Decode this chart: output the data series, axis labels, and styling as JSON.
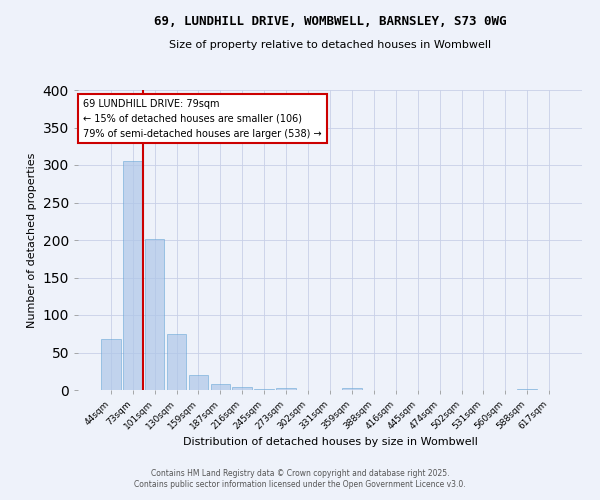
{
  "title_line1": "69, LUNDHILL DRIVE, WOMBWELL, BARNSLEY, S73 0WG",
  "title_line2": "Size of property relative to detached houses in Wombwell",
  "xlabel": "Distribution of detached houses by size in Wombwell",
  "ylabel": "Number of detached properties",
  "categories": [
    "44sqm",
    "73sqm",
    "101sqm",
    "130sqm",
    "159sqm",
    "187sqm",
    "216sqm",
    "245sqm",
    "273sqm",
    "302sqm",
    "331sqm",
    "359sqm",
    "388sqm",
    "416sqm",
    "445sqm",
    "474sqm",
    "502sqm",
    "531sqm",
    "560sqm",
    "588sqm",
    "617sqm"
  ],
  "values": [
    68,
    305,
    202,
    75,
    20,
    8,
    4,
    1,
    3,
    0,
    0,
    3,
    0,
    0,
    0,
    0,
    0,
    0,
    0,
    2,
    0
  ],
  "bar_color": "#aec6e8",
  "bar_edge_color": "#5a9fd4",
  "bar_alpha": 0.7,
  "red_line_index": 1,
  "annotation_text": "69 LUNDHILL DRIVE: 79sqm\n← 15% of detached houses are smaller (106)\n79% of semi-detached houses are larger (538) →",
  "annotation_box_color": "#ffffff",
  "annotation_border_color": "#cc0000",
  "ylim": [
    0,
    400
  ],
  "yticks": [
    0,
    50,
    100,
    150,
    200,
    250,
    300,
    350,
    400
  ],
  "background_color": "#eef2fa",
  "grid_color": "#c8d0e8",
  "footer_line1": "Contains HM Land Registry data © Crown copyright and database right 2025.",
  "footer_line2": "Contains public sector information licensed under the Open Government Licence v3.0."
}
